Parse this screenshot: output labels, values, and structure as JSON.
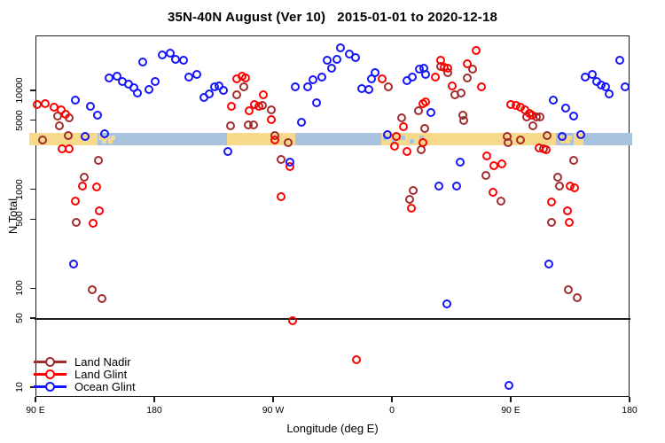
{
  "title": "35N-40N August (Ver 10)   2015-01-01 to 2020-12-18",
  "axes": {
    "x": {
      "label": "Longitude (deg E)",
      "ticks": [
        {
          "deg": 0,
          "label": "90 E"
        },
        {
          "deg": 90,
          "label": "180"
        },
        {
          "deg": 180,
          "label": "90 W"
        },
        {
          "deg": 270,
          "label": "0"
        },
        {
          "deg": 360,
          "label": "90 E"
        },
        {
          "deg": 450,
          "label": "180"
        }
      ]
    },
    "y": {
      "label": "N Total",
      "ticks": [
        10,
        50,
        100,
        500,
        1000,
        5000,
        10000
      ]
    }
  },
  "legend": [
    {
      "label": "Land Nadir",
      "color": "#A02C2C"
    },
    {
      "label": "Land Glint",
      "color": "#FF0000"
    },
    {
      "label": "Ocean Glint",
      "color": "#1414FF"
    }
  ],
  "chart_data": {
    "type": "scatter",
    "title": "35N-40N August (Ver 10)   2015-01-01 to 2020-12-18",
    "xlabel": "Longitude (deg E)",
    "ylabel": "N Total",
    "y_scale": "log10",
    "x_axis_note": "x values are degrees east of 90E along the wrapped axis 90E-180-90W-0-90E-180 (range 0-450)",
    "x_range": [
      0,
      450
    ],
    "ref_line_n": 50,
    "surface_band": {
      "center_n": 3160,
      "land_color": "#F7D98C",
      "ocean_color": "#A9C2DE",
      "segments": [
        {
          "from": -5,
          "to": 47,
          "type": "land"
        },
        {
          "from": 47,
          "to": 62,
          "type": "ocean",
          "mixed": true
        },
        {
          "from": 62,
          "to": 145,
          "type": "ocean"
        },
        {
          "from": 145,
          "to": 197,
          "type": "land"
        },
        {
          "from": 197,
          "to": 262,
          "type": "ocean"
        },
        {
          "from": 262,
          "to": 300,
          "type": "land",
          "mixed": true
        },
        {
          "from": 300,
          "to": 394,
          "type": "land"
        },
        {
          "from": 394,
          "to": 408,
          "type": "ocean",
          "mixed": true
        },
        {
          "from": 408,
          "to": 415,
          "type": "land"
        },
        {
          "from": 415,
          "to": 452,
          "type": "ocean"
        }
      ]
    },
    "series": [
      {
        "name": "Land Nadir",
        "color": "#A02C2C",
        "points": [
          [
            16.8,
            5500
          ],
          [
            25.5,
            5300
          ],
          [
            18.1,
            4400
          ],
          [
            5.4,
            3160
          ],
          [
            24.8,
            3500
          ],
          [
            36.9,
            1330
          ],
          [
            47.7,
            1960
          ],
          [
            30.9,
            460
          ],
          [
            43,
            97
          ],
          [
            50.4,
            78
          ],
          [
            157.8,
            10900
          ],
          [
            152.5,
            9000
          ],
          [
            147.8,
            4400
          ],
          [
            161.2,
            4500
          ],
          [
            165.2,
            4500
          ],
          [
            171.9,
            7000
          ],
          [
            178.6,
            6300
          ],
          [
            181.3,
            3500
          ],
          [
            191.4,
            2950
          ],
          [
            186,
            2000
          ],
          [
            267.3,
            10900
          ],
          [
            277.4,
            5300
          ],
          [
            286.1,
            980
          ],
          [
            283.4,
            800
          ],
          [
            290.1,
            6200
          ],
          [
            292.1,
            2500
          ],
          [
            294.8,
            4100
          ],
          [
            306.9,
            17500
          ],
          [
            312.3,
            15100
          ],
          [
            317.7,
            9000
          ],
          [
            322.4,
            9400
          ],
          [
            323.7,
            5600
          ],
          [
            324.4,
            5000
          ],
          [
            327.1,
            13400
          ],
          [
            331.1,
            16400
          ],
          [
            341.2,
            1380
          ],
          [
            352.6,
            760
          ],
          [
            372.1,
            5400
          ],
          [
            376.8,
            4400
          ],
          [
            379.5,
            5400
          ],
          [
            382.2,
            5400
          ],
          [
            357.3,
            3400
          ],
          [
            358,
            2950
          ],
          [
            367.4,
            3160
          ],
          [
            387.5,
            3500
          ],
          [
            384.9,
            2570
          ],
          [
            407.7,
            1960
          ],
          [
            395.6,
            1330
          ],
          [
            396.9,
            1070
          ],
          [
            390.9,
            460
          ],
          [
            403.6,
            97
          ],
          [
            410.4,
            80
          ]
        ]
      },
      {
        "name": "Land Glint",
        "color": "#FF0000",
        "points": [
          [
            1.3,
            7200
          ],
          [
            7.4,
            7400
          ],
          [
            14.1,
            6800
          ],
          [
            19.5,
            6300
          ],
          [
            22.8,
            5750
          ],
          [
            20.2,
            2570
          ],
          [
            25.5,
            2570
          ],
          [
            35.6,
            1070
          ],
          [
            46.3,
            1050
          ],
          [
            30.2,
            760
          ],
          [
            48.4,
            600
          ],
          [
            43.7,
            450
          ],
          [
            152.5,
            13200
          ],
          [
            156.5,
            13800
          ],
          [
            159.2,
            13400
          ],
          [
            148.4,
            6900
          ],
          [
            161.9,
            6200
          ],
          [
            165.9,
            7200
          ],
          [
            169.2,
            6900
          ],
          [
            172.6,
            9100
          ],
          [
            178.6,
            5100
          ],
          [
            181.3,
            3160
          ],
          [
            192.8,
            1700
          ],
          [
            186,
            850
          ],
          [
            194.8,
            47
          ],
          [
            243.1,
            19
          ],
          [
            262.6,
            13200
          ],
          [
            278.7,
            4300
          ],
          [
            273.3,
            3400
          ],
          [
            272,
            2750
          ],
          [
            281.4,
            2400
          ],
          [
            284.8,
            640
          ],
          [
            293.5,
            2950
          ],
          [
            293.5,
            7400
          ],
          [
            295.5,
            7600
          ],
          [
            302.9,
            13500
          ],
          [
            306.9,
            20000
          ],
          [
            309.6,
            17000
          ],
          [
            312.3,
            16600
          ],
          [
            315.7,
            11000
          ],
          [
            333.6,
            25500
          ],
          [
            327.1,
            18600
          ],
          [
            337.8,
            10900
          ],
          [
            341.8,
            2180
          ],
          [
            347.2,
            1740
          ],
          [
            353.3,
            1800
          ],
          [
            346.5,
            930
          ],
          [
            360,
            7200
          ],
          [
            364,
            7100
          ],
          [
            367.4,
            6700
          ],
          [
            370.8,
            6300
          ],
          [
            374.1,
            5900
          ],
          [
            376.1,
            5600
          ],
          [
            381.5,
            2630
          ],
          [
            386.9,
            2500
          ],
          [
            405,
            1070
          ],
          [
            408.4,
            1030
          ],
          [
            390.9,
            740
          ],
          [
            403,
            600
          ],
          [
            404.3,
            460
          ]
        ]
      },
      {
        "name": "Ocean Glint",
        "color": "#1414FF",
        "points": [
          [
            30.2,
            7950
          ],
          [
            41.6,
            6900
          ],
          [
            47,
            5600
          ],
          [
            52.4,
            3630
          ],
          [
            37.6,
            3400
          ],
          [
            55.7,
            13400
          ],
          [
            61.8,
            13900
          ],
          [
            65.8,
            12300
          ],
          [
            70.5,
            11500
          ],
          [
            74.5,
            10700
          ],
          [
            77.2,
            9400
          ],
          [
            81.3,
            19400
          ],
          [
            86,
            10200
          ],
          [
            90.7,
            12300
          ],
          [
            96,
            22800
          ],
          [
            102.1,
            23800
          ],
          [
            106.1,
            20600
          ],
          [
            112.2,
            20100
          ],
          [
            116.2,
            13600
          ],
          [
            122.2,
            14500
          ],
          [
            127.6,
            8500
          ],
          [
            131.6,
            9200
          ],
          [
            135.7,
            10900
          ],
          [
            139,
            11100
          ],
          [
            142.4,
            10000
          ],
          [
            145.7,
            2400
          ],
          [
            28.9,
            176
          ],
          [
            192.8,
            1880
          ],
          [
            196.8,
            10900
          ],
          [
            206.2,
            10900
          ],
          [
            210.2,
            12900
          ],
          [
            216.9,
            13600
          ],
          [
            212.9,
            7500
          ],
          [
            201.5,
            4750
          ],
          [
            221,
            20100
          ],
          [
            224.3,
            16800
          ],
          [
            231,
            26900
          ],
          [
            228.4,
            20600
          ],
          [
            237.7,
            23400
          ],
          [
            242.4,
            21400
          ],
          [
            257.2,
            15100
          ],
          [
            254.5,
            13200
          ],
          [
            247.1,
            10400
          ],
          [
            252.5,
            10200
          ],
          [
            266.6,
            3570
          ],
          [
            281.4,
            12500
          ],
          [
            285.4,
            13600
          ],
          [
            290.8,
            16400
          ],
          [
            294.1,
            16800
          ],
          [
            295.5,
            14500
          ],
          [
            299.5,
            6000
          ],
          [
            305.6,
            1070
          ],
          [
            319,
            1070
          ],
          [
            321.7,
            1880
          ],
          [
            311.6,
            69
          ],
          [
            392.2,
            7950
          ],
          [
            401.6,
            6600
          ],
          [
            407.7,
            5500
          ],
          [
            399,
            3400
          ],
          [
            413,
            3570
          ],
          [
            388.8,
            176
          ],
          [
            416.4,
            13600
          ],
          [
            421.7,
            14500
          ],
          [
            425.1,
            12300
          ],
          [
            428.4,
            11300
          ],
          [
            431.8,
            10900
          ],
          [
            434.5,
            9200
          ],
          [
            442.6,
            20100
          ],
          [
            446.6,
            10900
          ],
          [
            358.6,
            10.5
          ]
        ]
      }
    ]
  }
}
